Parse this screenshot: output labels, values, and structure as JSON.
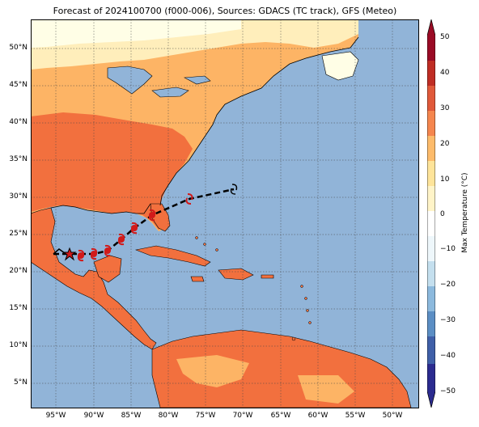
{
  "title": "Forecast of 2024100700 (f000-006), Sources: GDACS (TC track), GFS (Meteo)",
  "lat_labels": [
    "50°N",
    "45°N",
    "40°N",
    "35°N",
    "30°N",
    "25°N",
    "20°N",
    "15°N",
    "10°N",
    "5°N"
  ],
  "lon_labels": [
    "95°W",
    "90°W",
    "85°W",
    "80°W",
    "75°W",
    "70°W",
    "65°W",
    "60°W",
    "55°W",
    "50°W"
  ],
  "colorbar": {
    "title": "Max Temperature (°C)",
    "tick_labels": [
      "50",
      "40",
      "30",
      "20",
      "10",
      "0",
      "−10",
      "−20",
      "−30",
      "−40",
      "−50"
    ],
    "colors": [
      "#2b2b8f",
      "#3f5fa8",
      "#5b8ec4",
      "#8cb9dd",
      "#c4dfee",
      "#eef7fb",
      "#ffffff",
      "#fff4c8",
      "#fee49a",
      "#fdbb6b",
      "#f5864e",
      "#e0593a",
      "#bf2d24",
      "#9a0b25"
    ]
  },
  "legend_colors": {
    "ocean": "#91b4d8",
    "land_hot": "#f2703e",
    "land_warm": "#fdb465",
    "land_mild": "#ffeebb",
    "land_cool": "#fffee6",
    "track": "#000000",
    "marker": "#d11a1a"
  },
  "track_markers": [
    "star-icon",
    "cyclone-icon",
    "cyclone-icon",
    "cyclone-icon",
    "cyclone-icon",
    "cyclone-icon",
    "cyclone-icon",
    "cyclone-icon"
  ]
}
